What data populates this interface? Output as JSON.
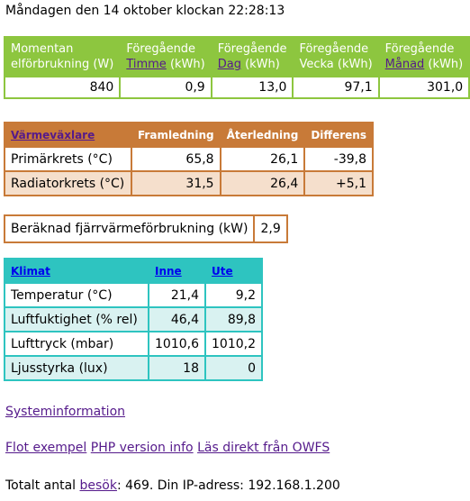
{
  "header": {
    "datetime": "Måndagen den 14 oktober klockan 22:28:13"
  },
  "power": {
    "headers": [
      {
        "line1": "Momentan",
        "line2": "elförbrukning (W)"
      },
      {
        "line1": "Föregående",
        "link": "Timme",
        "suffix": " (kWh)"
      },
      {
        "line1": "Föregående",
        "link": "Dag",
        "suffix": " (kWh)"
      },
      {
        "line1": "Föregående",
        "line2": "Vecka (kWh)"
      },
      {
        "line1": "Föregående",
        "link": "Månad",
        "suffix": " (kWh)"
      }
    ],
    "values": [
      "840",
      "0,9",
      "13,0",
      "97,1",
      "301,0"
    ]
  },
  "heat": {
    "headers": [
      "Värmeväxlare",
      "Framledning",
      "Återledning",
      "Differens"
    ],
    "rows": [
      {
        "label": "Primärkrets (°C)",
        "values": [
          "65,8",
          "26,1",
          "-39,8"
        ]
      },
      {
        "label": "Radiatorkrets (°C)",
        "values": [
          "31,5",
          "26,4",
          "+5,1"
        ]
      }
    ]
  },
  "calc": {
    "label": "Beräknad fjärrvärmeförbrukning (kW)",
    "value": "2,9"
  },
  "climate": {
    "headers": [
      "Klimat",
      "Inne",
      "Ute"
    ],
    "rows": [
      {
        "label": "Temperatur (°C)",
        "values": [
          "21,4",
          "9,2"
        ]
      },
      {
        "label": "Luftfuktighet (% rel)",
        "values": [
          "46,4",
          "89,8"
        ]
      },
      {
        "label": "Lufttryck (mbar)",
        "values": [
          "1010,6",
          "1010,2"
        ]
      },
      {
        "label": "Ljusstyrka (lux)",
        "values": [
          "18",
          "0"
        ]
      }
    ]
  },
  "links": {
    "system": "Systeminformation",
    "flot": "Flot exempel",
    "php": "PHP version info",
    "owfs": "Läs direkt från OWFS"
  },
  "footer": {
    "prefix": "Totalt antal ",
    "link": "besök",
    "suffix": ": 469. Din IP-adress: 192.168.1.200"
  }
}
